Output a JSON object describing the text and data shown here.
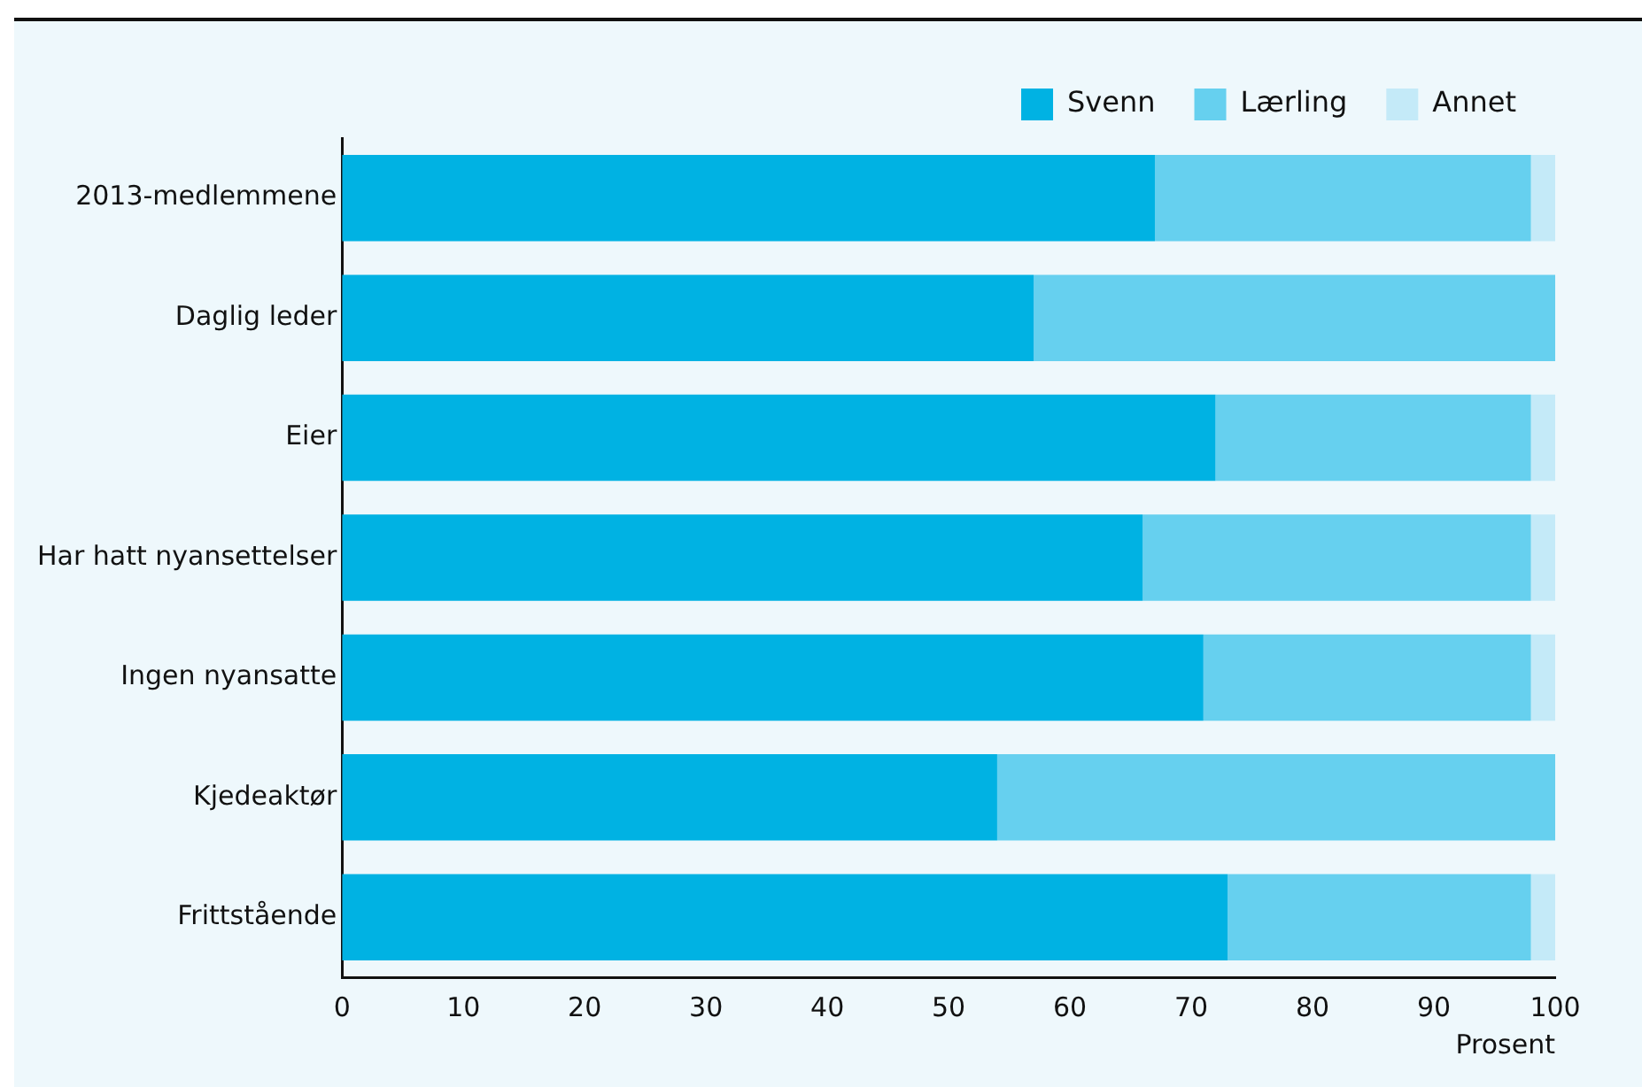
{
  "chart_data": {
    "type": "bar",
    "orientation": "horizontal",
    "stacked": true,
    "xlabel": "Prosent",
    "categories": [
      "2013-medlemmene",
      "Daglig leder",
      "Eier",
      "Har hatt nyansettelser",
      "Ingen nyansatte",
      "Kjedeaktør",
      "Frittstående"
    ],
    "series": [
      {
        "name": "Svenn",
        "color": "#00b2e3",
        "values": [
          67,
          57,
          72,
          66,
          71,
          54,
          73
        ]
      },
      {
        "name": "Lærling",
        "color": "#66d0ef",
        "values": [
          31,
          43,
          26,
          32,
          27,
          46,
          25
        ]
      },
      {
        "name": "Annet",
        "color": "#c4eaf8",
        "values": [
          2,
          0,
          2,
          2,
          2,
          0,
          2
        ]
      }
    ],
    "xlim": [
      0,
      100
    ],
    "xticks": [
      0,
      10,
      20,
      30,
      40,
      50,
      60,
      70,
      80,
      90,
      100
    ],
    "grid": false,
    "legend": "top right"
  }
}
